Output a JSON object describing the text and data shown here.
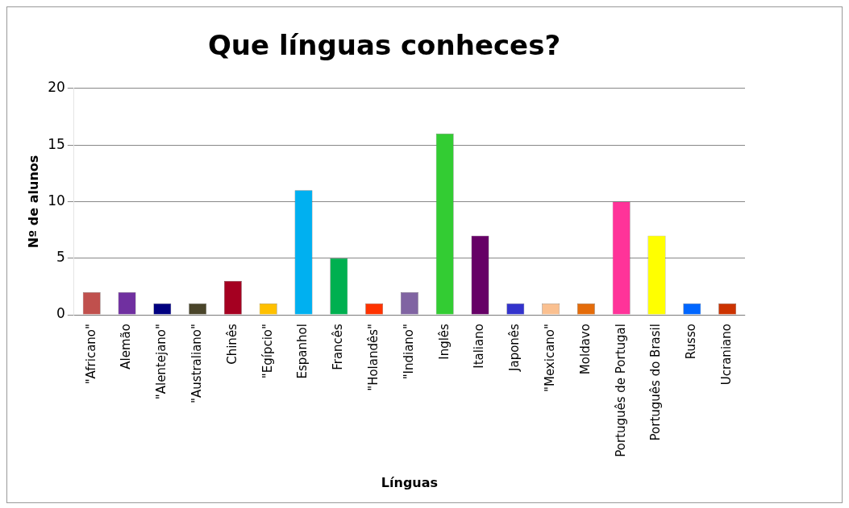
{
  "chart_data": {
    "type": "bar",
    "title": "Que línguas conheces?",
    "xlabel": "Línguas",
    "ylabel": "Nº de alunos",
    "categories": [
      "\"Africano\"",
      "Alemão",
      "\"Alentejano\"",
      "\"Australiano\"",
      "Chinês",
      "\"Egípcio\"",
      "Espanhol",
      "Francês",
      "\"Holandês\"",
      "\"Indiano\"",
      "Inglês",
      "Italiano",
      "Japonês",
      "\"Mexicano\"",
      "Moldavo",
      "Português de Portugal",
      "Português do Brasil",
      "Russo",
      "Ucraniano"
    ],
    "values": [
      2,
      2,
      1,
      1,
      3,
      1,
      11,
      5,
      1,
      2,
      16,
      7,
      1,
      1,
      1,
      10,
      7,
      1,
      1
    ],
    "colors": [
      "#c0504d",
      "#7030a0",
      "#000080",
      "#4a452a",
      "#a50021",
      "#ffc000",
      "#00b0f0",
      "#00b050",
      "#ff3300",
      "#8064a2",
      "#33cc33",
      "#660066",
      "#3333cc",
      "#fac090",
      "#e46c0a",
      "#ff3399",
      "#ffff00",
      "#0066ff",
      "#cc3300"
    ],
    "ylim": [
      0,
      20
    ],
    "yticks": [
      0,
      5,
      10,
      15,
      20
    ],
    "grid": "y",
    "legend": false
  }
}
